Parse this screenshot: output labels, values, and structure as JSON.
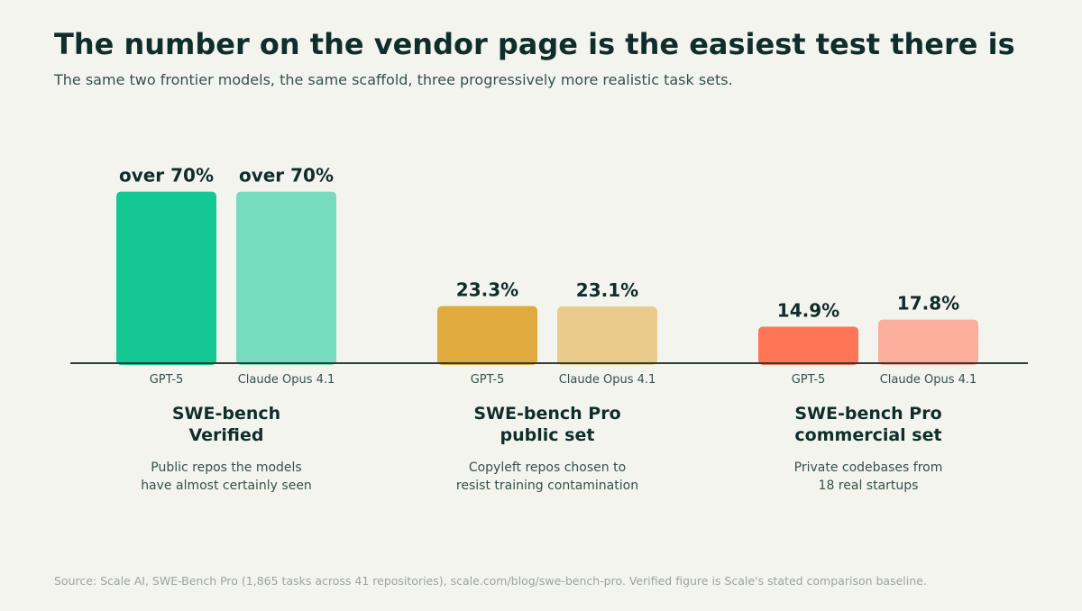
{
  "header": {
    "title": "The number on the vendor page is the easiest test there is",
    "subtitle": "The same two frontier models, the same scaffold, three progressively more realistic task sets."
  },
  "footer": {
    "source": "Source: Scale AI, SWE-Bench Pro (1,865 tasks across 41 repositories), scale.com/blog/swe-bench-pro. Verified figure is Scale's stated comparison baseline."
  },
  "chart_data": {
    "type": "bar",
    "title": "The number on the vendor page is the easiest test there is",
    "subtitle": "The same two frontier models, the same scaffold, three progressively more realistic task sets.",
    "ylabel": "",
    "ylim": [
      0,
      100
    ],
    "grid": false,
    "legend": "none",
    "groups": [
      {
        "name": [
          "SWE-bench",
          "Verified"
        ],
        "description": [
          "Public repos the models",
          "have almost certainly seen"
        ],
        "bars": [
          {
            "model": "GPT-5",
            "value": 70,
            "label": "over 70%",
            "color": "#14c893"
          },
          {
            "model": "Claude Opus 4.1",
            "value": 70,
            "label": "over 70%",
            "color": "#77dcbd"
          }
        ]
      },
      {
        "name": [
          "SWE-bench Pro",
          "public set"
        ],
        "description": [
          "Copyleft repos chosen to",
          "resist training contamination"
        ],
        "bars": [
          {
            "model": "GPT-5",
            "value": 23.3,
            "label": "23.3%",
            "color": "#e0aa3e"
          },
          {
            "model": "Claude Opus 4.1",
            "value": 23.1,
            "label": "23.1%",
            "color": "#eacb8c"
          }
        ]
      },
      {
        "name": [
          "SWE-bench Pro",
          "commercial set"
        ],
        "description": [
          "Private codebases from",
          "18 real startups"
        ],
        "bars": [
          {
            "model": "GPT-5",
            "value": 14.9,
            "label": "14.9%",
            "color": "#ff7555"
          },
          {
            "model": "Claude Opus 4.1",
            "value": 17.8,
            "label": "17.8%",
            "color": "#fbae9a"
          }
        ]
      }
    ],
    "colors": {
      "axis": "#2c3e3b",
      "text_dark": "#0f2e2b",
      "text_mid": "#35504c"
    }
  }
}
